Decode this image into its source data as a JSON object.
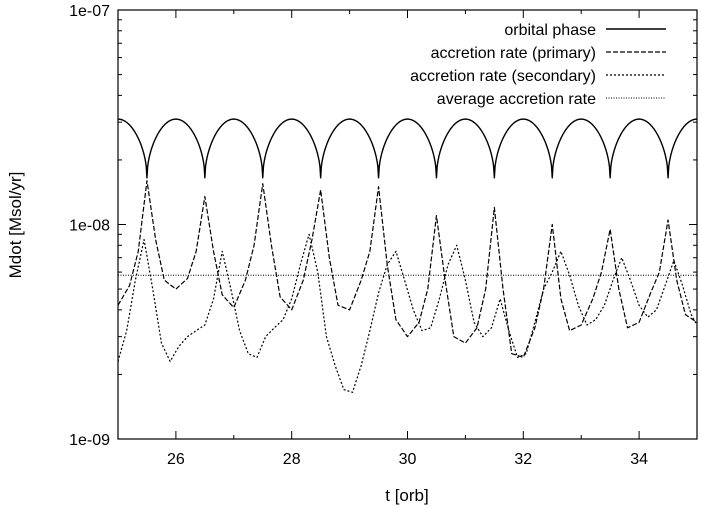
{
  "chart_data": {
    "type": "line",
    "title": "",
    "xlabel": "t [orb]",
    "ylabel": "Mdot [Msol/yr]",
    "xlim": [
      25,
      35
    ],
    "ylim": [
      1e-09,
      1e-07
    ],
    "yscale": "log",
    "grid": false,
    "legend_position": "top-right",
    "x_ticks": [
      26,
      28,
      30,
      32,
      34
    ],
    "x_tick_labels": [
      "26",
      "28",
      "30",
      "32",
      "34"
    ],
    "y_ticks": [
      1e-09,
      1e-08,
      1e-07
    ],
    "y_tick_labels": [
      "1e-09",
      "1e-08",
      "1e-07"
    ],
    "series": [
      {
        "name": "orbital phase",
        "style": "solid",
        "color": "#000000",
        "description_values": "periodic arches between 1.65e-08 (minima at t = 25.5, 26.5, ..., 34.5) and 3.1e-08 (maxima at t = 25.0, 26.0, ..., 35.0)",
        "x": [
          25.0,
          25.5,
          26.0,
          26.5,
          27.0,
          27.5,
          28.0,
          28.5,
          29.0,
          29.5,
          30.0,
          30.5,
          31.0,
          31.5,
          32.0,
          32.5,
          33.0,
          33.5,
          34.0,
          34.5,
          35.0
        ],
        "y": [
          3.1e-08,
          1.65e-08,
          3.1e-08,
          1.65e-08,
          3.1e-08,
          1.65e-08,
          3.1e-08,
          1.65e-08,
          3.1e-08,
          1.65e-08,
          3.1e-08,
          1.65e-08,
          3.1e-08,
          1.65e-08,
          3.1e-08,
          1.65e-08,
          3.1e-08,
          1.65e-08,
          3.1e-08,
          1.65e-08,
          3.1e-08
        ]
      },
      {
        "name": "accretion rate (primary)",
        "style": "dashed",
        "color": "#000000",
        "x": [
          25.0,
          25.2,
          25.35,
          25.5,
          25.65,
          25.8,
          26.0,
          26.2,
          26.35,
          26.5,
          26.65,
          26.8,
          27.0,
          27.2,
          27.35,
          27.5,
          27.65,
          27.8,
          28.0,
          28.2,
          28.35,
          28.5,
          28.65,
          28.8,
          29.0,
          29.2,
          29.35,
          29.5,
          29.65,
          29.8,
          30.0,
          30.2,
          30.35,
          30.5,
          30.65,
          30.8,
          31.0,
          31.2,
          31.35,
          31.5,
          31.65,
          31.8,
          32.0,
          32.2,
          32.35,
          32.5,
          32.65,
          32.8,
          33.0,
          33.2,
          33.35,
          33.5,
          33.65,
          33.8,
          34.0,
          34.2,
          34.35,
          34.5,
          34.65,
          34.8,
          35.0
        ],
        "y": [
          4.2e-09,
          5.2e-09,
          7.5e-09,
          1.6e-08,
          8.5e-09,
          5.5e-09,
          5e-09,
          5.6e-09,
          7.5e-09,
          1.35e-08,
          7.5e-09,
          4.7e-09,
          4.1e-09,
          5.5e-09,
          8e-09,
          1.55e-08,
          8e-09,
          4.6e-09,
          4e-09,
          5.5e-09,
          8.5e-09,
          1.45e-08,
          7e-09,
          4.2e-09,
          4e-09,
          5.5e-09,
          7.5e-09,
          1.5e-08,
          6.5e-09,
          3.6e-09,
          3e-09,
          3.5e-09,
          5e-09,
          1.1e-08,
          5.5e-09,
          3e-09,
          2.8e-09,
          3.3e-09,
          5e-09,
          1.2e-08,
          5e-09,
          2.5e-09,
          2.4e-09,
          3.3e-09,
          5e-09,
          1e-08,
          4.5e-09,
          3.2e-09,
          3.4e-09,
          4.5e-09,
          6e-09,
          9.5e-09,
          5e-09,
          3.3e-09,
          3.5e-09,
          4.8e-09,
          6e-09,
          1.05e-08,
          5.5e-09,
          3.8e-09,
          3.5e-09
        ]
      },
      {
        "name": "accretion rate (secondary)",
        "style": "dotted",
        "color": "#000000",
        "x": [
          25.0,
          25.15,
          25.3,
          25.45,
          25.6,
          25.75,
          25.9,
          26.05,
          26.2,
          26.35,
          26.5,
          26.65,
          26.8,
          26.95,
          27.1,
          27.25,
          27.4,
          27.55,
          27.7,
          27.85,
          28.0,
          28.15,
          28.3,
          28.45,
          28.6,
          28.75,
          28.9,
          29.05,
          29.2,
          29.35,
          29.5,
          29.65,
          29.8,
          29.95,
          30.1,
          30.25,
          30.4,
          30.55,
          30.7,
          30.85,
          31.0,
          31.15,
          31.3,
          31.45,
          31.6,
          31.75,
          31.9,
          32.05,
          32.2,
          32.35,
          32.5,
          32.65,
          32.8,
          32.95,
          33.1,
          33.25,
          33.4,
          33.55,
          33.7,
          33.85,
          34.0,
          34.15,
          34.3,
          34.45,
          34.6,
          34.75,
          34.9,
          35.0
        ],
        "y": [
          2.3e-09,
          3.2e-09,
          5.5e-09,
          8.5e-09,
          5e-09,
          2.8e-09,
          2.3e-09,
          2.7e-09,
          3e-09,
          3.2e-09,
          3.4e-09,
          4.5e-09,
          7.5e-09,
          5e-09,
          3.2e-09,
          2.5e-09,
          2.4e-09,
          3e-09,
          3.3e-09,
          3.6e-09,
          4.5e-09,
          6.5e-09,
          9e-09,
          6e-09,
          3e-09,
          2.2e-09,
          1.7e-09,
          1.65e-09,
          2.2e-09,
          3.2e-09,
          4.8e-09,
          6.5e-09,
          7.5e-09,
          5.5e-09,
          4e-09,
          3.2e-09,
          3.3e-09,
          4.5e-09,
          6.5e-09,
          8e-09,
          5.5e-09,
          3.5e-09,
          3e-09,
          3.3e-09,
          4.5e-09,
          3.2e-09,
          2.4e-09,
          2.5e-09,
          3.5e-09,
          5e-09,
          6e-09,
          7.5e-09,
          5.8e-09,
          4.2e-09,
          3.4e-09,
          3.6e-09,
          4.2e-09,
          5.5e-09,
          7e-09,
          5.5e-09,
          4.2e-09,
          3.7e-09,
          4e-09,
          5.2e-09,
          6.8e-09,
          5.2e-09,
          3.8e-09,
          3.4e-09
        ]
      },
      {
        "name": "average accretion rate",
        "style": "dotted-fine",
        "color": "#000000",
        "x": [
          25.0,
          35.0
        ],
        "y": [
          5.8e-09,
          5.8e-09
        ]
      }
    ]
  }
}
